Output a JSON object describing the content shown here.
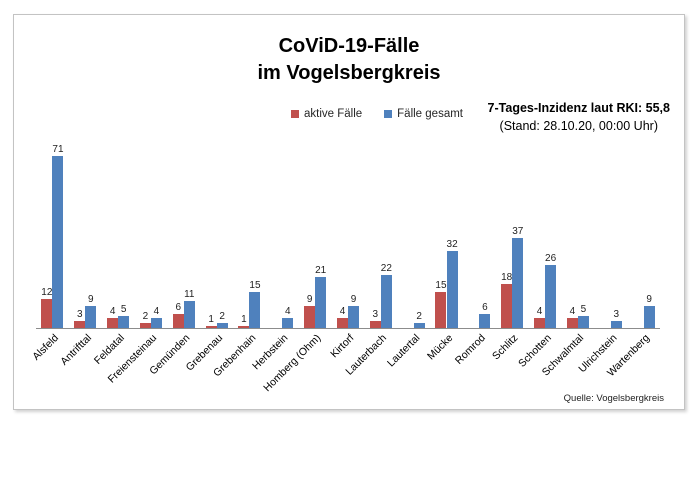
{
  "title": {
    "line1": "CoViD-19-Fälle",
    "line2": "im Vogelsbergkreis"
  },
  "annotation": {
    "line1": "7-Tages-Inzidenz laut RKI: 55,8",
    "line2": "(Stand: 28.10.20, 00:00 Uhr)"
  },
  "source": "Quelle: Vogelsbergkreis",
  "colors": {
    "active": "#C0504D",
    "total": "#4F81BD",
    "axis": "#8c8c8c"
  },
  "chart_data": {
    "type": "bar",
    "title": "CoViD-19-Fälle im Vogelsbergkreis",
    "xlabel": "",
    "ylabel": "",
    "ylim": [
      0,
      75
    ],
    "grid": false,
    "legend_position": "top",
    "categories": [
      "Alsfeld",
      "Antrifttal",
      "Feldatal",
      "Freiensteinau",
      "Gemünden",
      "Grebenau",
      "Grebenhain",
      "Herbstein",
      "Homberg (Ohm)",
      "Kirtorf",
      "Lauterbach",
      "Lautertal",
      "Mücke",
      "Romrod",
      "Schlitz",
      "Schotten",
      "Schwalmtal",
      "Ulrichstein",
      "Wartenberg"
    ],
    "series": [
      {
        "name": "aktive Fälle",
        "color": "#C0504D",
        "values": [
          12,
          3,
          4,
          2,
          6,
          1,
          1,
          null,
          9,
          4,
          3,
          null,
          15,
          null,
          18,
          4,
          4,
          null,
          null
        ]
      },
      {
        "name": "Fälle gesamt",
        "color": "#4F81BD",
        "values": [
          71,
          9,
          5,
          4,
          11,
          2,
          15,
          4,
          21,
          9,
          22,
          2,
          32,
          6,
          37,
          26,
          5,
          3,
          9
        ]
      }
    ]
  }
}
